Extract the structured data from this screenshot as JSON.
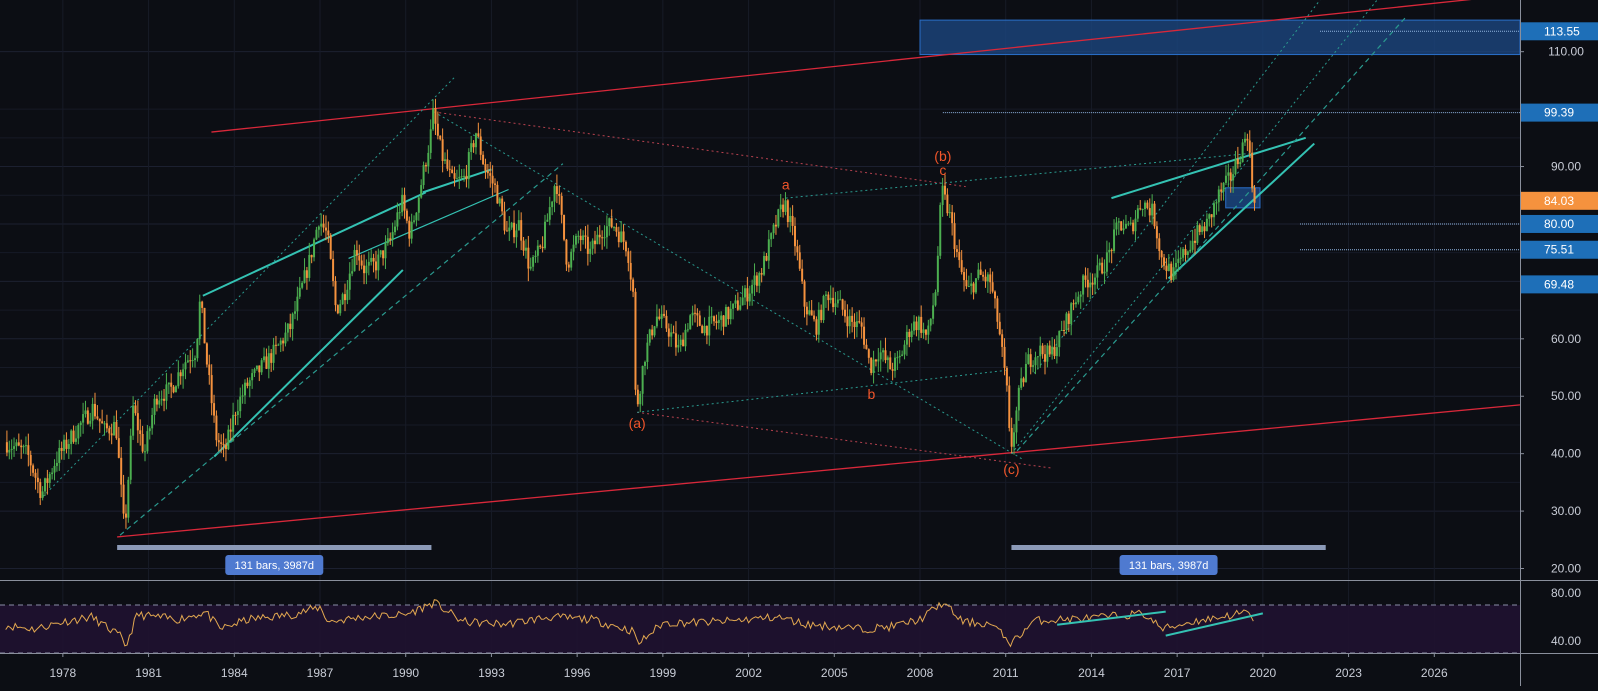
{
  "chart_data": [
    {
      "type": "candlestick",
      "title": "",
      "ylim": [
        18,
        119
      ],
      "xlim": [
        1975.8,
        2029.0
      ],
      "y_scale": "linear",
      "grid": true,
      "up_color": "#4caf50",
      "down_color": "#f5923e",
      "y_ticks": [
        "20.00",
        "30.00",
        "40.00",
        "50.00",
        "60.00",
        "70.00",
        "80.00",
        "90.00",
        "110.00"
      ],
      "y_tick_values": [
        20,
        30,
        40,
        50,
        60,
        70,
        80,
        90,
        110
      ],
      "x_ticks": [
        "1978",
        "1981",
        "1984",
        "1987",
        "1990",
        "1993",
        "1996",
        "1999",
        "2002",
        "2005",
        "2008",
        "2011",
        "2014",
        "2017",
        "2020",
        "2023",
        "2026"
      ],
      "x_tick_values": [
        1978,
        1981,
        1984,
        1987,
        1990,
        1993,
        1996,
        1999,
        2002,
        2005,
        2008,
        2011,
        2014,
        2017,
        2020,
        2023,
        2026
      ],
      "price_path": [
        [
          1976.0,
          42
        ],
        [
          1976.8,
          40
        ],
        [
          1977.3,
          33
        ],
        [
          1977.8,
          39
        ],
        [
          1978.5,
          44
        ],
        [
          1979.1,
          48
        ],
        [
          1979.5,
          44
        ],
        [
          1979.9,
          45
        ],
        [
          1980.2,
          26
        ],
        [
          1980.5,
          48
        ],
        [
          1980.9,
          40
        ],
        [
          1981.3,
          50
        ],
        [
          1981.8,
          51
        ],
        [
          1982.3,
          56
        ],
        [
          1982.7,
          58
        ],
        [
          1982.85,
          67
        ],
        [
          1983.1,
          55
        ],
        [
          1983.4,
          43
        ],
        [
          1983.7,
          40
        ],
        [
          1984.1,
          48
        ],
        [
          1984.5,
          52
        ],
        [
          1985.0,
          55
        ],
        [
          1985.5,
          58
        ],
        [
          1986.0,
          62
        ],
        [
          1986.3,
          67
        ],
        [
          1986.7,
          74
        ],
        [
          1987.0,
          81
        ],
        [
          1987.3,
          78
        ],
        [
          1987.6,
          65
        ],
        [
          1987.9,
          68
        ],
        [
          1988.3,
          76
        ],
        [
          1988.6,
          72
        ],
        [
          1989.0,
          73
        ],
        [
          1989.5,
          77
        ],
        [
          1989.9,
          84
        ],
        [
          1990.2,
          78
        ],
        [
          1990.5,
          85
        ],
        [
          1990.9,
          95
        ],
        [
          1991.0,
          99
        ],
        [
          1991.3,
          92
        ],
        [
          1991.7,
          87
        ],
        [
          1992.1,
          88
        ],
        [
          1992.5,
          96
        ],
        [
          1992.8,
          90
        ],
        [
          1993.2,
          86
        ],
        [
          1993.6,
          78
        ],
        [
          1994.0,
          80
        ],
        [
          1994.4,
          72
        ],
        [
          1994.8,
          76
        ],
        [
          1995.3,
          88
        ],
        [
          1995.7,
          73
        ],
        [
          1996.1,
          78
        ],
        [
          1996.5,
          75
        ],
        [
          1996.9,
          79
        ],
        [
          1997.3,
          80
        ],
        [
          1997.8,
          76
        ],
        [
          1998.0,
          68
        ],
        [
          1998.1,
          47
        ],
        [
          1998.4,
          57
        ],
        [
          1998.8,
          64
        ],
        [
          1999.2,
          62
        ],
        [
          1999.6,
          58
        ],
        [
          2000.0,
          64
        ],
        [
          2000.5,
          62
        ],
        [
          2001.0,
          63
        ],
        [
          2001.5,
          65
        ],
        [
          2002.0,
          68
        ],
        [
          2002.5,
          72
        ],
        [
          2003.0,
          80
        ],
        [
          2003.3,
          84
        ],
        [
          2003.7,
          76
        ],
        [
          2004.0,
          66
        ],
        [
          2004.4,
          62
        ],
        [
          2004.8,
          68
        ],
        [
          2005.2,
          66
        ],
        [
          2005.6,
          63
        ],
        [
          2006.0,
          62
        ],
        [
          2006.3,
          55
        ],
        [
          2006.6,
          58
        ],
        [
          2007.0,
          55
        ],
        [
          2007.3,
          56
        ],
        [
          2007.7,
          62
        ],
        [
          2008.0,
          63
        ],
        [
          2008.3,
          60
        ],
        [
          2008.6,
          69
        ],
        [
          2008.8,
          86
        ],
        [
          2009.1,
          81
        ],
        [
          2009.4,
          73
        ],
        [
          2009.7,
          68
        ],
        [
          2010.1,
          71
        ],
        [
          2010.5,
          70
        ],
        [
          2010.8,
          62
        ],
        [
          2011.1,
          50
        ],
        [
          2011.2,
          40
        ],
        [
          2011.5,
          50
        ],
        [
          2011.8,
          56
        ],
        [
          2012.2,
          58
        ],
        [
          2012.6,
          57
        ],
        [
          2013.0,
          61
        ],
        [
          2013.4,
          66
        ],
        [
          2013.8,
          70
        ],
        [
          2014.2,
          71
        ],
        [
          2014.6,
          74
        ],
        [
          2015.0,
          80
        ],
        [
          2015.4,
          79
        ],
        [
          2015.8,
          84
        ],
        [
          2016.2,
          82
        ],
        [
          2016.5,
          74
        ],
        [
          2016.9,
          71
        ],
        [
          2017.3,
          75
        ],
        [
          2017.7,
          78
        ],
        [
          2018.1,
          80
        ],
        [
          2018.5,
          85
        ],
        [
          2018.9,
          88
        ],
        [
          2019.3,
          93
        ],
        [
          2019.5,
          96
        ],
        [
          2019.7,
          85
        ]
      ],
      "rsi": {
        "ylim": [
          30,
          90
        ],
        "y_ticks": [
          "80.00",
          "40.00"
        ],
        "y_tick_values": [
          80,
          40
        ],
        "upper_band": 70,
        "lower_band": 30,
        "line_color": "#e2a850",
        "path": [
          [
            1976.0,
            53
          ],
          [
            1977.0,
            50
          ],
          [
            1978.0,
            56
          ],
          [
            1979.0,
            60
          ],
          [
            1980.0,
            44
          ],
          [
            1980.2,
            35
          ],
          [
            1980.6,
            62
          ],
          [
            1982.0,
            58
          ],
          [
            1983.0,
            64
          ],
          [
            1983.5,
            50
          ],
          [
            1984.5,
            58
          ],
          [
            1986.0,
            62
          ],
          [
            1987.0,
            68
          ],
          [
            1987.3,
            56
          ],
          [
            1988.5,
            60
          ],
          [
            1990.0,
            62
          ],
          [
            1991.0,
            72
          ],
          [
            1992.0,
            56
          ],
          [
            1993.5,
            54
          ],
          [
            1995.0,
            60
          ],
          [
            1996.5,
            58
          ],
          [
            1998.0,
            48
          ],
          [
            1998.1,
            37
          ],
          [
            1999.0,
            55
          ],
          [
            2001.0,
            56
          ],
          [
            2003.0,
            60
          ],
          [
            2004.0,
            54
          ],
          [
            2006.0,
            50
          ],
          [
            2007.0,
            52
          ],
          [
            2008.0,
            58
          ],
          [
            2008.8,
            72
          ],
          [
            2009.5,
            56
          ],
          [
            2010.5,
            54
          ],
          [
            2011.2,
            38
          ],
          [
            2012.0,
            57
          ],
          [
            2014.0,
            59
          ],
          [
            2015.8,
            63
          ],
          [
            2016.5,
            50
          ],
          [
            2017.5,
            56
          ],
          [
            2018.5,
            60
          ],
          [
            2019.5,
            64
          ],
          [
            2019.7,
            52
          ]
        ]
      },
      "price_lines": [
        {
          "label": "99.39",
          "value": 99.39,
          "color": "#1e88e5"
        },
        {
          "label": "84.03",
          "value": 84.03,
          "color": "#f5923e"
        },
        {
          "label": "80.00",
          "value": 80.0,
          "color": "#1e88e5"
        },
        {
          "label": "75.51",
          "value": 75.51,
          "color": "#1e88e5"
        },
        {
          "label": "69.48",
          "value": 69.48,
          "color": "#1e88e5"
        },
        {
          "label": "113.55",
          "value": 113.55,
          "color": "#1e88e5"
        }
      ],
      "annotations": [
        {
          "text": "(a)",
          "x": 1998.1,
          "y": 44.5
        },
        {
          "text": "a",
          "x": 2003.3,
          "y": 86
        },
        {
          "text": "b",
          "x": 2006.3,
          "y": 49.5
        },
        {
          "text": "(b)",
          "x": 2008.8,
          "y": 91
        },
        {
          "text": "c",
          "x": 2008.8,
          "y": 88.5
        },
        {
          "text": "(c)",
          "x": 2011.2,
          "y": 36.5
        }
      ],
      "range_measurements": [
        {
          "label": "131 bars, 3987d",
          "x_start": 1979.9,
          "x_end": 1990.9
        },
        {
          "label": "131 bars, 3987d",
          "x_start": 2011.2,
          "x_end": 2022.2
        }
      ]
    }
  ]
}
